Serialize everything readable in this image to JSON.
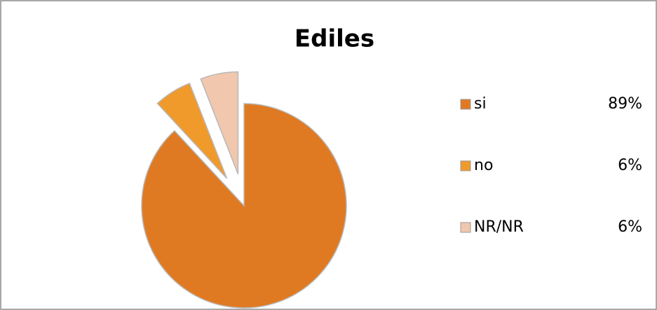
{
  "chart_data": {
    "type": "pie",
    "title": "Ediles",
    "categories": [
      "si",
      "no",
      "NR/NR"
    ],
    "values": [
      89,
      6,
      6
    ],
    "value_labels": [
      "89%",
      "6%",
      "6%"
    ],
    "colors": [
      "#e07a22",
      "#f09a2c",
      "#f1c7ad"
    ],
    "exploded": [
      false,
      true,
      true
    ],
    "legend": "right"
  }
}
